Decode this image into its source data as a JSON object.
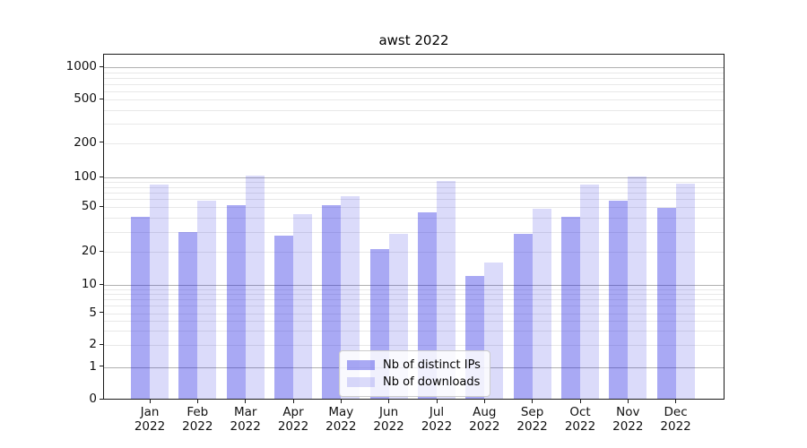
{
  "chart_data": {
    "type": "bar",
    "title": "awst 2022",
    "categories": [
      "Jan 2022",
      "Feb 2022",
      "Mar 2022",
      "Apr 2022",
      "May 2022",
      "Jun 2022",
      "Jul 2022",
      "Aug 2022",
      "Sep 2022",
      "Oct 2022",
      "Nov 2022",
      "Dec 2022"
    ],
    "series": [
      {
        "name": "Nb of distinct IPs",
        "color_hex": "#aaaaf3",
        "color_rgba": "rgba(30,30,225,0.38)",
        "values": [
          41,
          30,
          52,
          28,
          52,
          21,
          45,
          12,
          29,
          41,
          58,
          49
        ]
      },
      {
        "name": "Nb of downloads",
        "color_hex": "#dbdbfa",
        "color_rgba": "rgba(30,30,225,0.16)",
        "values": [
          84,
          58,
          103,
          43,
          64,
          29,
          92,
          16,
          48,
          85,
          102,
          87
        ]
      }
    ],
    "yscale": "symlog",
    "yticks": [
      0,
      1,
      2,
      5,
      10,
      20,
      50,
      100,
      200,
      500,
      1000
    ],
    "ylim": [
      0,
      1300
    ],
    "xlabel": "",
    "ylabel": "",
    "grid": true,
    "legend_position": "lower center",
    "grid_major_color": "#b0b0b0",
    "grid_minor_color": "#e8e8e8"
  }
}
